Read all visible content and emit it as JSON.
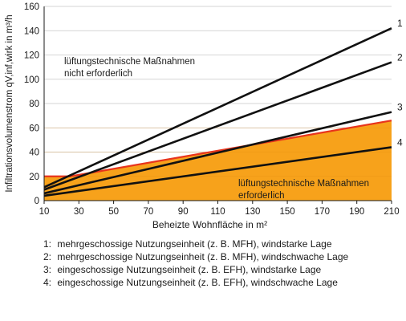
{
  "chart_data": {
    "type": "line",
    "title": "",
    "xlabel": "Beheizte Wohnfläche in m²",
    "ylabel": "Infiltrationsvolumenstrom qV,inf,wirk in m³/h",
    "xlim": [
      10,
      210
    ],
    "ylim": [
      0,
      160
    ],
    "xticks": [
      10,
      30,
      50,
      70,
      90,
      110,
      130,
      150,
      170,
      190,
      210
    ],
    "yticks": [
      0,
      20,
      40,
      60,
      80,
      100,
      120,
      140,
      160
    ],
    "grid": "horizontal",
    "series": [
      {
        "name": "1",
        "x": [
          10,
          210
        ],
        "values": [
          11,
          142
        ]
      },
      {
        "name": "2",
        "x": [
          10,
          210
        ],
        "values": [
          9,
          114
        ]
      },
      {
        "name": "3",
        "x": [
          10,
          210
        ],
        "values": [
          6,
          73
        ]
      },
      {
        "name": "4",
        "x": [
          10,
          210
        ],
        "values": [
          4,
          44
        ]
      }
    ],
    "threshold_line": {
      "x": [
        10,
        25,
        210
      ],
      "values": [
        20,
        20,
        66
      ],
      "color": "#e8341c"
    },
    "regions": [
      {
        "label": "lüftungstechnische Maßnahmen nicht erforderlich",
        "position": "upper-left"
      },
      {
        "label": "lüftungstechnische Maßnahmen erforderlich",
        "position": "lower-right",
        "fill": "#f7a21b"
      }
    ]
  },
  "legend": [
    {
      "num": "1:",
      "text": "mehrgeschossige Nutzungseinheit (z. B. MFH), windstarke Lage"
    },
    {
      "num": "2:",
      "text": "mehrgeschossige Nutzungseinheit (z. B. MFH), windschwache Lage"
    },
    {
      "num": "3:",
      "text": "eingeschossige Nutzungseinheit (z. B. EFH), windstarke Lage"
    },
    {
      "num": "4:",
      "text": "eingeschossige Nutzungseinheit (z. B. EFH), windschwache Lage"
    }
  ],
  "colors": {
    "line": "#111111",
    "fill": "#f7a21b",
    "threshold": "#e8341c",
    "grid": "#c8c8c8"
  }
}
